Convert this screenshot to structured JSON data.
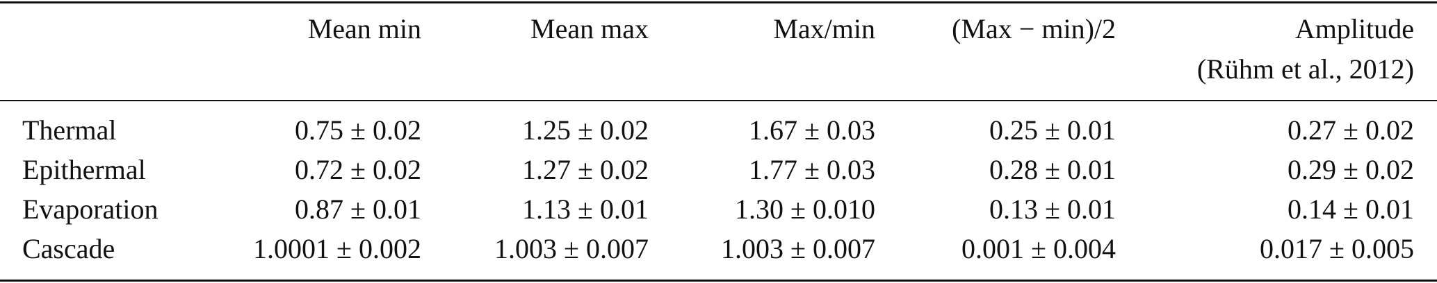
{
  "table": {
    "columns": [
      "Mean min",
      "Mean max",
      "Max/min",
      "(Max − min)/2",
      [
        "Amplitude",
        "(Rühm et al., 2012)"
      ]
    ],
    "rows": [
      {
        "label": "Thermal",
        "cells": [
          "0.75 ± 0.02",
          "1.25 ± 0.02",
          "1.67 ± 0.03",
          "0.25 ± 0.01",
          "0.27 ± 0.02"
        ]
      },
      {
        "label": "Epithermal",
        "cells": [
          "0.72 ± 0.02",
          "1.27 ± 0.02",
          "1.77 ± 0.03",
          "0.28 ± 0.01",
          "0.29 ± 0.02"
        ]
      },
      {
        "label": "Evaporation",
        "cells": [
          "0.87 ± 0.01",
          "1.13 ± 0.01",
          "1.30 ± 0.010",
          "0.13 ± 0.01",
          "0.14 ± 0.01"
        ]
      },
      {
        "label": "Cascade",
        "cells": [
          "1.0001 ± 0.002",
          "1.003 ± 0.007",
          "1.003 ± 0.007",
          "0.001 ± 0.004",
          "0.017 ± 0.005"
        ]
      }
    ]
  }
}
